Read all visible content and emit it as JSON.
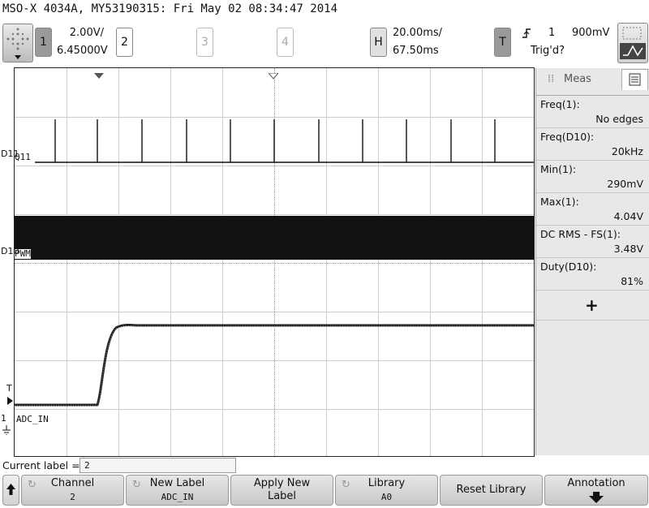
{
  "header": {
    "title": "MSO-X 4034A, MY53190315: Fri May 02 08:34:47 2014"
  },
  "channels": {
    "ch1": {
      "number": "1",
      "scale": "2.00V/",
      "offset": "6.45000V"
    },
    "ch2": {
      "number": "2"
    },
    "ch3": {
      "number": "3"
    },
    "ch4": {
      "number": "4"
    }
  },
  "horizontal": {
    "key": "H",
    "scale": "20.00ms/",
    "delay": "67.50ms"
  },
  "trigger": {
    "key": "T",
    "slope_icon": "rising-edge-icon",
    "source": "1",
    "level": "900mV",
    "status": "Trig'd?"
  },
  "waveforms": {
    "d11": {
      "indicator": "D11",
      "label": "Q11"
    },
    "d10": {
      "indicator": "D10",
      "label": "PWM"
    },
    "analog": {
      "trigger_marker": "T",
      "ground_marker": "1",
      "label": "ADC_IN"
    }
  },
  "measurements": {
    "tab_label": "Meas",
    "items": [
      {
        "name": "Freq(1):",
        "value": "No edges"
      },
      {
        "name": "Freq(D10):",
        "value": "20kHz"
      },
      {
        "name": "Min(1):",
        "value": "290mV"
      },
      {
        "name": "Max(1):",
        "value": "4.04V"
      },
      {
        "name": "DC RMS - FS(1):",
        "value": "3.48V"
      },
      {
        "name": "Duty(D10):",
        "value": "81%"
      }
    ],
    "add_label": "+"
  },
  "bottom": {
    "current_label_caption": "Current label =",
    "current_label_value": "2",
    "softkeys": [
      {
        "line1": "Channel",
        "line2": "2"
      },
      {
        "line1": "New Label",
        "line2": "ADC_IN"
      },
      {
        "line1": "Apply New",
        "line2": "Label"
      },
      {
        "line1": "Library",
        "line2": "A0"
      },
      {
        "line1": "Reset Library",
        "line2": ""
      },
      {
        "line1": "Annotation",
        "line2": ""
      }
    ]
  },
  "colors": {
    "trace": "#111111",
    "grid": "#cfcfcf",
    "panel": "#e8e8e8"
  }
}
